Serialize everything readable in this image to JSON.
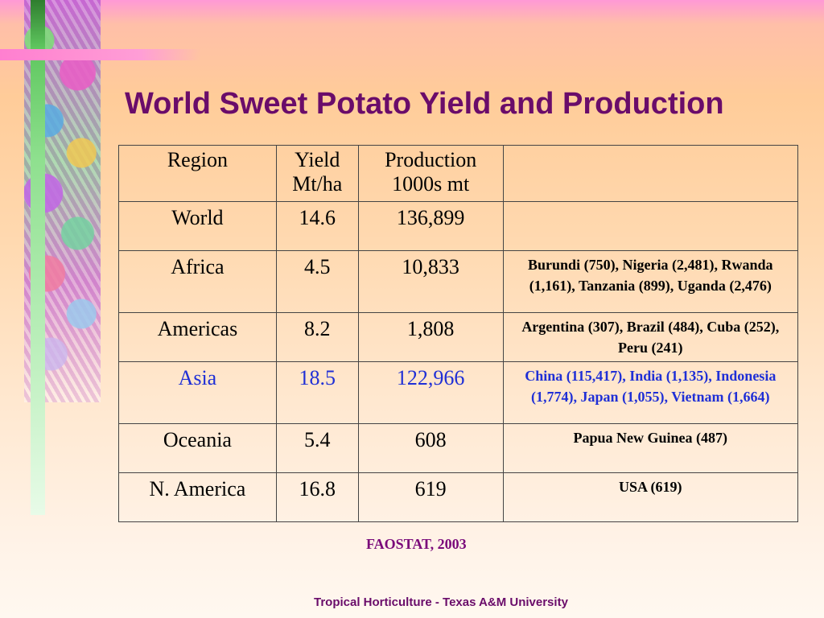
{
  "title": "World Sweet Potato Yield and Production",
  "table": {
    "headers": {
      "region": "Region",
      "yield_line1": "Yield",
      "yield_line2": "Mt/ha",
      "production_line1": "Production",
      "production_line2": "1000s mt",
      "countries": ""
    },
    "rows": [
      {
        "region": "World",
        "yield": "14.6",
        "production": "136,899",
        "countries": ""
      },
      {
        "region": "Africa",
        "yield": "4.5",
        "production": "10,833",
        "countries": "Burundi (750), Nigeria (2,481), Rwanda (1,161), Tanzania (899), Uganda (2,476)"
      },
      {
        "region": "Americas",
        "yield": "8.2",
        "production": "1,808",
        "countries": "Argentina (307), Brazil (484), Cuba (252), Peru (241)"
      },
      {
        "region": "Asia",
        "yield": "18.5",
        "production": "122,966",
        "countries": "China (115,417), India (1,135), Indonesia (1,774), Japan (1,055), Vietnam (1,664)"
      },
      {
        "region": "Oceania",
        "yield": "5.4",
        "production": "608",
        "countries": "Papua New Guinea (487)"
      },
      {
        "region": "N. America",
        "yield": "16.8",
        "production": "619",
        "countries": "USA (619)"
      }
    ]
  },
  "source": "FAOSTAT, 2003",
  "footer": "Tropical Horticulture - Texas A&M University",
  "colors": {
    "title": "#6a0c6a",
    "highlight_row": "#1f2fd6"
  }
}
